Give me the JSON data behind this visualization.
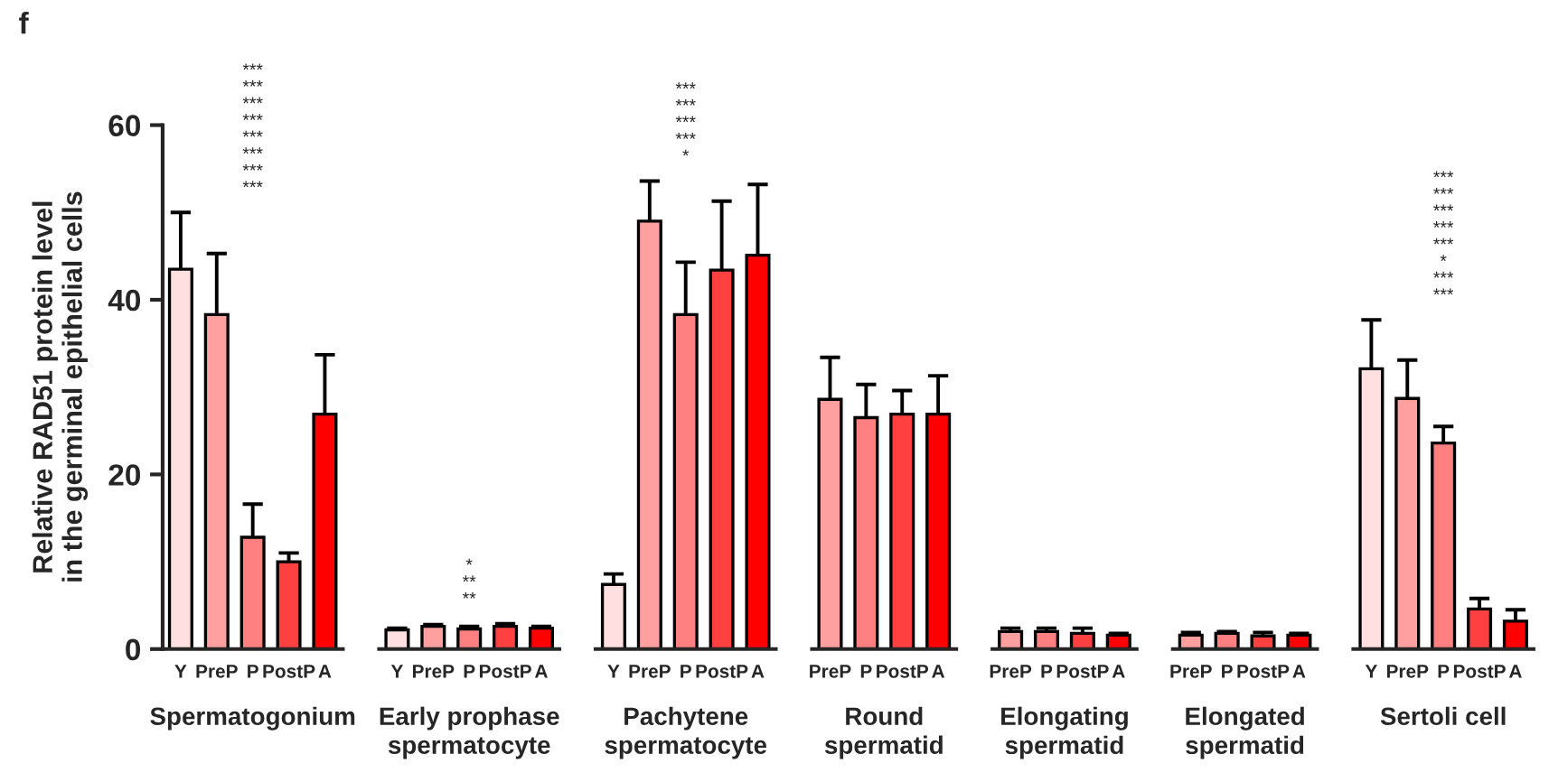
{
  "chart_data": [
    {
      "type": "bar",
      "title": "f",
      "xlabel": "Spermatogonium",
      "ylabel": "Relative RAD51 protein level\nin the germinal epithelial cells",
      "categories": [
        "Y",
        "PreP",
        "P",
        "PostP",
        "A"
      ],
      "values": [
        43.5,
        38.3,
        12.8,
        10.0,
        26.9
      ],
      "errors": [
        6.5,
        7.0,
        3.8,
        1.0,
        6.8
      ],
      "colors": [
        "#ffdfdf",
        "#ffa0a0",
        "#ff8080",
        "#ff4040",
        "#ff0000"
      ],
      "ylim": [
        0,
        60
      ],
      "yticks": [
        0,
        20,
        40,
        60
      ],
      "grid": false,
      "annotations": [
        "***",
        "***",
        "***",
        "***",
        "***",
        "***",
        "***",
        "***"
      ]
    },
    {
      "type": "bar",
      "xlabel": "Early prophase\nspermatocyte",
      "categories": [
        "Y",
        "PreP",
        "P",
        "PostP",
        "A"
      ],
      "values": [
        2.2,
        2.6,
        2.3,
        2.6,
        2.4
      ],
      "errors": [
        0.2,
        0.2,
        0.3,
        0.3,
        0.2
      ],
      "colors": [
        "#ffdfdf",
        "#ffa0a0",
        "#ff8080",
        "#ff4040",
        "#ff0000"
      ],
      "ylim": [
        0,
        60
      ],
      "tick_labels": "x",
      "grid": false,
      "annotations": [
        "*",
        "**",
        "**"
      ]
    },
    {
      "type": "bar",
      "xlabel": "Pachytene\nspermatocyte",
      "categories": [
        "Y",
        "PreP",
        "P",
        "PostP",
        "A"
      ],
      "values": [
        7.4,
        49.0,
        38.3,
        43.4,
        45.1
      ],
      "errors": [
        1.2,
        4.6,
        6.0,
        7.9,
        8.1
      ],
      "colors": [
        "#ffdfdf",
        "#ffa0a0",
        "#ff8080",
        "#ff4040",
        "#ff0000"
      ],
      "ylim": [
        0,
        60
      ],
      "tick_labels": "x",
      "grid": false,
      "annotations": [
        "***",
        "***",
        "***",
        "***",
        "*"
      ]
    },
    {
      "type": "bar",
      "xlabel": "Round\nspermatid",
      "categories": [
        "PreP",
        "P",
        "PostP",
        "A"
      ],
      "values": [
        28.6,
        26.5,
        26.9,
        26.9
      ],
      "errors": [
        4.8,
        3.8,
        2.7,
        4.4
      ],
      "colors": [
        "#ffa0a0",
        "#ff8080",
        "#ff4040",
        "#ff0000"
      ],
      "ylim": [
        0,
        60
      ],
      "tick_labels": "x",
      "grid": false
    },
    {
      "type": "bar",
      "xlabel": "Elongating\nspermatid",
      "categories": [
        "PreP",
        "P",
        "PostP",
        "A"
      ],
      "values": [
        2.0,
        2.0,
        1.8,
        1.6
      ],
      "errors": [
        0.4,
        0.4,
        0.6,
        0.2
      ],
      "colors": [
        "#ffa0a0",
        "#ff8080",
        "#ff4040",
        "#ff0000"
      ],
      "ylim": [
        0,
        60
      ],
      "tick_labels": "x",
      "grid": false
    },
    {
      "type": "bar",
      "xlabel": "Elongated\nspermatid",
      "categories": [
        "PreP",
        "P",
        "PostP",
        "A"
      ],
      "values": [
        1.6,
        1.8,
        1.5,
        1.6
      ],
      "errors": [
        0.3,
        0.2,
        0.4,
        0.2
      ],
      "colors": [
        "#ffa0a0",
        "#ff8080",
        "#ff4040",
        "#ff0000"
      ],
      "ylim": [
        0,
        60
      ],
      "tick_labels": "x",
      "grid": false
    },
    {
      "type": "bar",
      "xlabel": "Sertoli cell",
      "categories": [
        "Y",
        "PreP",
        "P",
        "PostP",
        "A"
      ],
      "values": [
        32.1,
        28.7,
        23.6,
        4.6,
        3.2
      ],
      "errors": [
        5.6,
        4.4,
        1.9,
        1.2,
        1.3
      ],
      "colors": [
        "#ffdfdf",
        "#ffa0a0",
        "#ff8080",
        "#ff4040",
        "#ff0000"
      ],
      "ylim": [
        0,
        60
      ],
      "tick_labels": "x",
      "grid": false,
      "annotations": [
        "***",
        "***",
        "***",
        "***",
        "***",
        "*",
        "***",
        "***"
      ]
    }
  ]
}
